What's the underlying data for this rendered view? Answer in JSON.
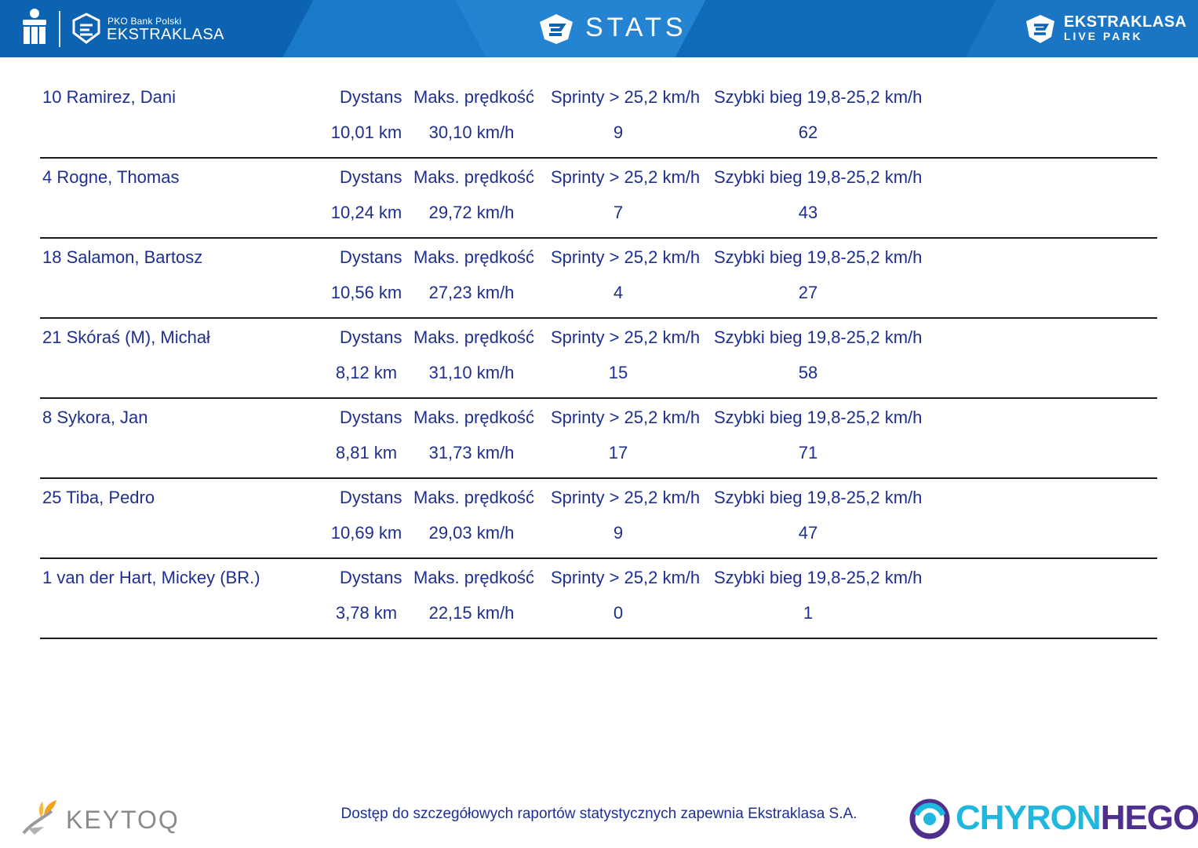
{
  "header": {
    "bank_small": "PKO Bank Polski",
    "league_name": "EKSTRAKLASA",
    "title": "STATS",
    "live_line1": "EKSTRAKLASA",
    "live_line2": "LIVE PARK",
    "colors": {
      "bar": "#0b63b2",
      "text": "#ffffff"
    }
  },
  "labels": {
    "distance": "Dystans",
    "max_speed": "Maks. prędkość",
    "sprints": "Sprinty > 25,2 km/h",
    "fast_run": "Szybki bieg 19,8-25,2 km/h"
  },
  "players": [
    {
      "name": "10  Ramirez, Dani",
      "distance": "10,01 km",
      "max_speed": "30,10 km/h",
      "sprints": "9",
      "fast_run": "62"
    },
    {
      "name": "4  Rogne, Thomas",
      "distance": "10,24 km",
      "max_speed": "29,72 km/h",
      "sprints": "7",
      "fast_run": "43"
    },
    {
      "name": "18  Salamon, Bartosz",
      "distance": "10,56 km",
      "max_speed": "27,23 km/h",
      "sprints": "4",
      "fast_run": "27"
    },
    {
      "name": "21  Skóraś (M), Michał",
      "distance": "8,12 km",
      "max_speed": "31,10 km/h",
      "sprints": "15",
      "fast_run": "58"
    },
    {
      "name": "8  Sykora, Jan",
      "distance": "8,81 km",
      "max_speed": "31,73 km/h",
      "sprints": "17",
      "fast_run": "71"
    },
    {
      "name": "25  Tiba, Pedro",
      "distance": "10,69 km",
      "max_speed": "29,03 km/h",
      "sprints": "9",
      "fast_run": "47"
    },
    {
      "name": "1  van der Hart, Mickey (BR.)",
      "distance": "3,78 km",
      "max_speed": "22,15 km/h",
      "sprints": "0",
      "fast_run": "1"
    }
  ],
  "footer": {
    "keytoq": "KEYTOQ",
    "note": "Dostęp do szczegółowych raportów statystycznych zapewnia Ekstraklasa S.A.",
    "chyron_part1": "CHYRON",
    "chyron_part2": "HEGO",
    "text_color": "#1f2f8f"
  }
}
